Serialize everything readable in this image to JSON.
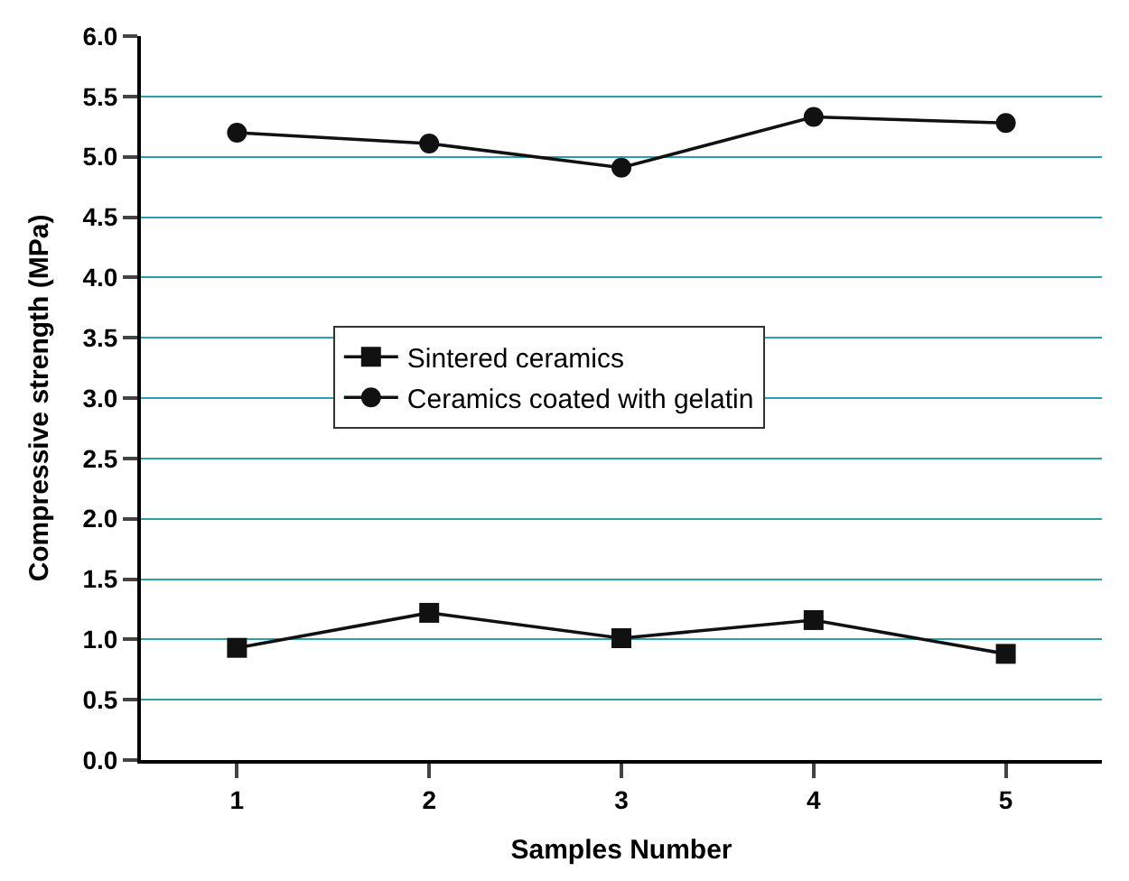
{
  "chart_data": {
    "type": "line",
    "xlabel": "Samples Number",
    "ylabel": "Compressive strength (MPa)",
    "x": [
      1,
      2,
      3,
      4,
      5
    ],
    "series": [
      {
        "name": "Sintered ceramics",
        "color": "#111111",
        "marker": "square",
        "values": [
          0.93,
          1.22,
          1.01,
          1.16,
          0.88
        ]
      },
      {
        "name": "Ceramics coated with gelatin",
        "color": "#111111",
        "marker": "circle",
        "values": [
          5.2,
          5.11,
          4.91,
          5.33,
          5.28
        ]
      }
    ],
    "xlim": [
      0.5,
      5.5
    ],
    "xticks": [
      1,
      2,
      3,
      4,
      5
    ],
    "ylim": [
      0,
      6
    ],
    "yticks": [
      {
        "value": 0,
        "label": "0.0"
      },
      0.5,
      {
        "value": 1,
        "label": "1.0"
      },
      1.5,
      {
        "value": 2,
        "label": "2.0"
      },
      2.5,
      {
        "value": 3,
        "label": "3.0"
      },
      3.5,
      {
        "value": 4,
        "label": "4.0"
      },
      4.5,
      {
        "value": 5,
        "label": "5.0"
      },
      5.5,
      {
        "value": 6,
        "label": "6.0"
      }
    ],
    "grid": "y",
    "legend": "center",
    "line_style": "solid"
  }
}
